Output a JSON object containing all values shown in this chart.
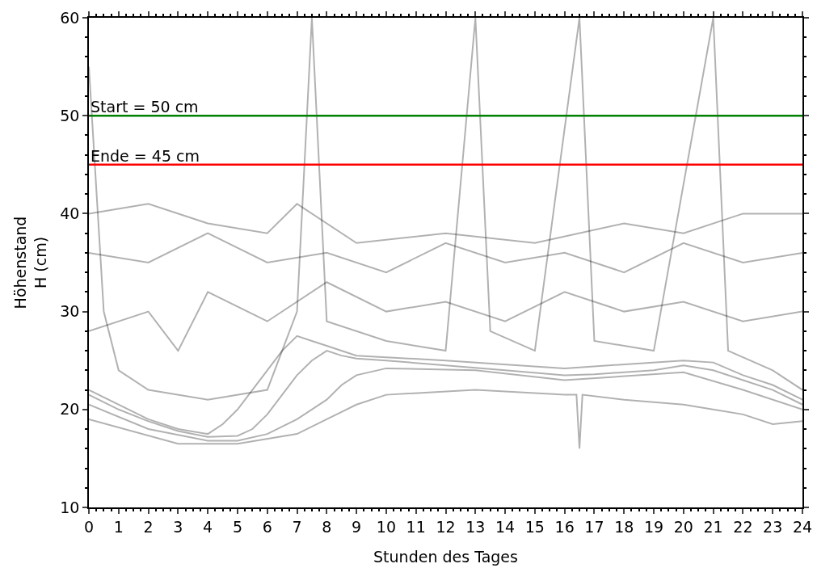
{
  "chart_data": {
    "type": "line",
    "xlabel": "Stunden des Tages",
    "ylabel": "Höhenstand\nH (cm)",
    "xlim": [
      0,
      24
    ],
    "xticks": [
      0,
      1,
      2,
      3,
      4,
      5,
      6,
      7,
      8,
      9,
      10,
      11,
      12,
      13,
      14,
      15,
      16,
      17,
      18,
      19,
      20,
      21,
      22,
      23,
      24
    ],
    "ylim": [
      10,
      60
    ],
    "yticks": [
      10,
      20,
      30,
      40,
      50,
      60
    ],
    "grid": false,
    "marker": "none",
    "line_style": "solid",
    "series": [
      {
        "color": "#000000",
        "x": [
          0,
          1,
          2,
          3,
          4,
          5,
          5.5,
          6,
          6.5,
          7,
          7.5,
          8,
          8.5,
          9,
          10,
          12,
          14,
          16,
          17,
          18,
          19,
          20,
          21,
          22,
          23,
          24
        ],
        "values": [
          21.5,
          20,
          18.8,
          17.8,
          17.2,
          17.3,
          18,
          19.5,
          21.5,
          23.5,
          25,
          26,
          25.5,
          25.2,
          25,
          24.5,
          24,
          23.5,
          23.6,
          23.8,
          24,
          24.5,
          24,
          23,
          22,
          20.5
        ]
      },
      {
        "color": "#000000",
        "x": [
          0,
          2,
          3,
          4,
          4.5,
          5,
          5.5,
          6,
          6.5,
          7,
          7.5,
          8,
          9,
          12,
          16,
          20,
          21,
          22,
          23,
          24
        ],
        "values": [
          22,
          19,
          18,
          17.5,
          18.5,
          20,
          22,
          24,
          26,
          27.5,
          27,
          26.5,
          25.5,
          25,
          24.2,
          25,
          24.8,
          23.5,
          22.5,
          21
        ]
      },
      {
        "color": "#000000",
        "x": [
          0,
          2,
          4,
          5,
          6,
          7,
          8,
          8.5,
          9,
          10,
          13,
          16,
          20,
          22,
          24
        ],
        "values": [
          20.5,
          18,
          16.8,
          16.8,
          17.5,
          19,
          21,
          22.5,
          23.5,
          24.2,
          24,
          23,
          23.8,
          22,
          20
        ]
      },
      {
        "color": "#000000",
        "x": [
          0,
          3,
          5,
          7,
          8,
          9,
          10,
          13,
          16,
          16.4,
          16.5,
          16.6,
          18,
          20,
          22,
          23,
          24
        ],
        "values": [
          19,
          16.5,
          16.5,
          17.5,
          19,
          20.5,
          21.5,
          22,
          21.5,
          21.5,
          16,
          21.5,
          21,
          20.5,
          19.5,
          18.5,
          18.8
        ]
      },
      {
        "color": "#000000",
        "x": [
          0,
          2,
          4,
          6,
          8,
          10,
          12,
          14,
          16,
          18,
          20,
          22,
          24
        ],
        "values": [
          36,
          35,
          38,
          35,
          36,
          34,
          37,
          35,
          36,
          34,
          37,
          35,
          36
        ]
      },
      {
        "color": "#000000",
        "x": [
          0,
          2,
          4,
          6,
          7,
          9,
          12,
          15,
          18,
          20,
          22,
          24
        ],
        "values": [
          40,
          41,
          39,
          38,
          41,
          37,
          38,
          37,
          39,
          38,
          40,
          40
        ]
      },
      {
        "color": "#000000",
        "x": [
          0,
          0.5,
          1,
          2,
          4,
          6,
          7,
          7.5,
          8,
          10,
          12,
          13,
          13.5,
          15,
          16.5,
          17,
          19,
          21,
          21.5,
          23,
          24
        ],
        "values": [
          55,
          30,
          24,
          22,
          21,
          22,
          30,
          60,
          29,
          27,
          26,
          60,
          28,
          26,
          60,
          27,
          26,
          60,
          26,
          24,
          22
        ]
      },
      {
        "color": "#000000",
        "x": [
          0,
          2,
          3,
          4,
          6,
          8,
          10,
          12,
          14,
          16,
          18,
          20,
          22,
          24
        ],
        "values": [
          28,
          30,
          26,
          32,
          29,
          33,
          30,
          31,
          29,
          32,
          30,
          31,
          29,
          30
        ]
      }
    ],
    "ref_lines": [
      {
        "axis": "y",
        "value": 50,
        "label": "Start = 50 cm",
        "color": "#008000",
        "line_style": "solid"
      },
      {
        "axis": "y",
        "value": 45,
        "label": "Ende = 45 cm",
        "color": "#ff0000",
        "line_style": "solid"
      }
    ]
  }
}
